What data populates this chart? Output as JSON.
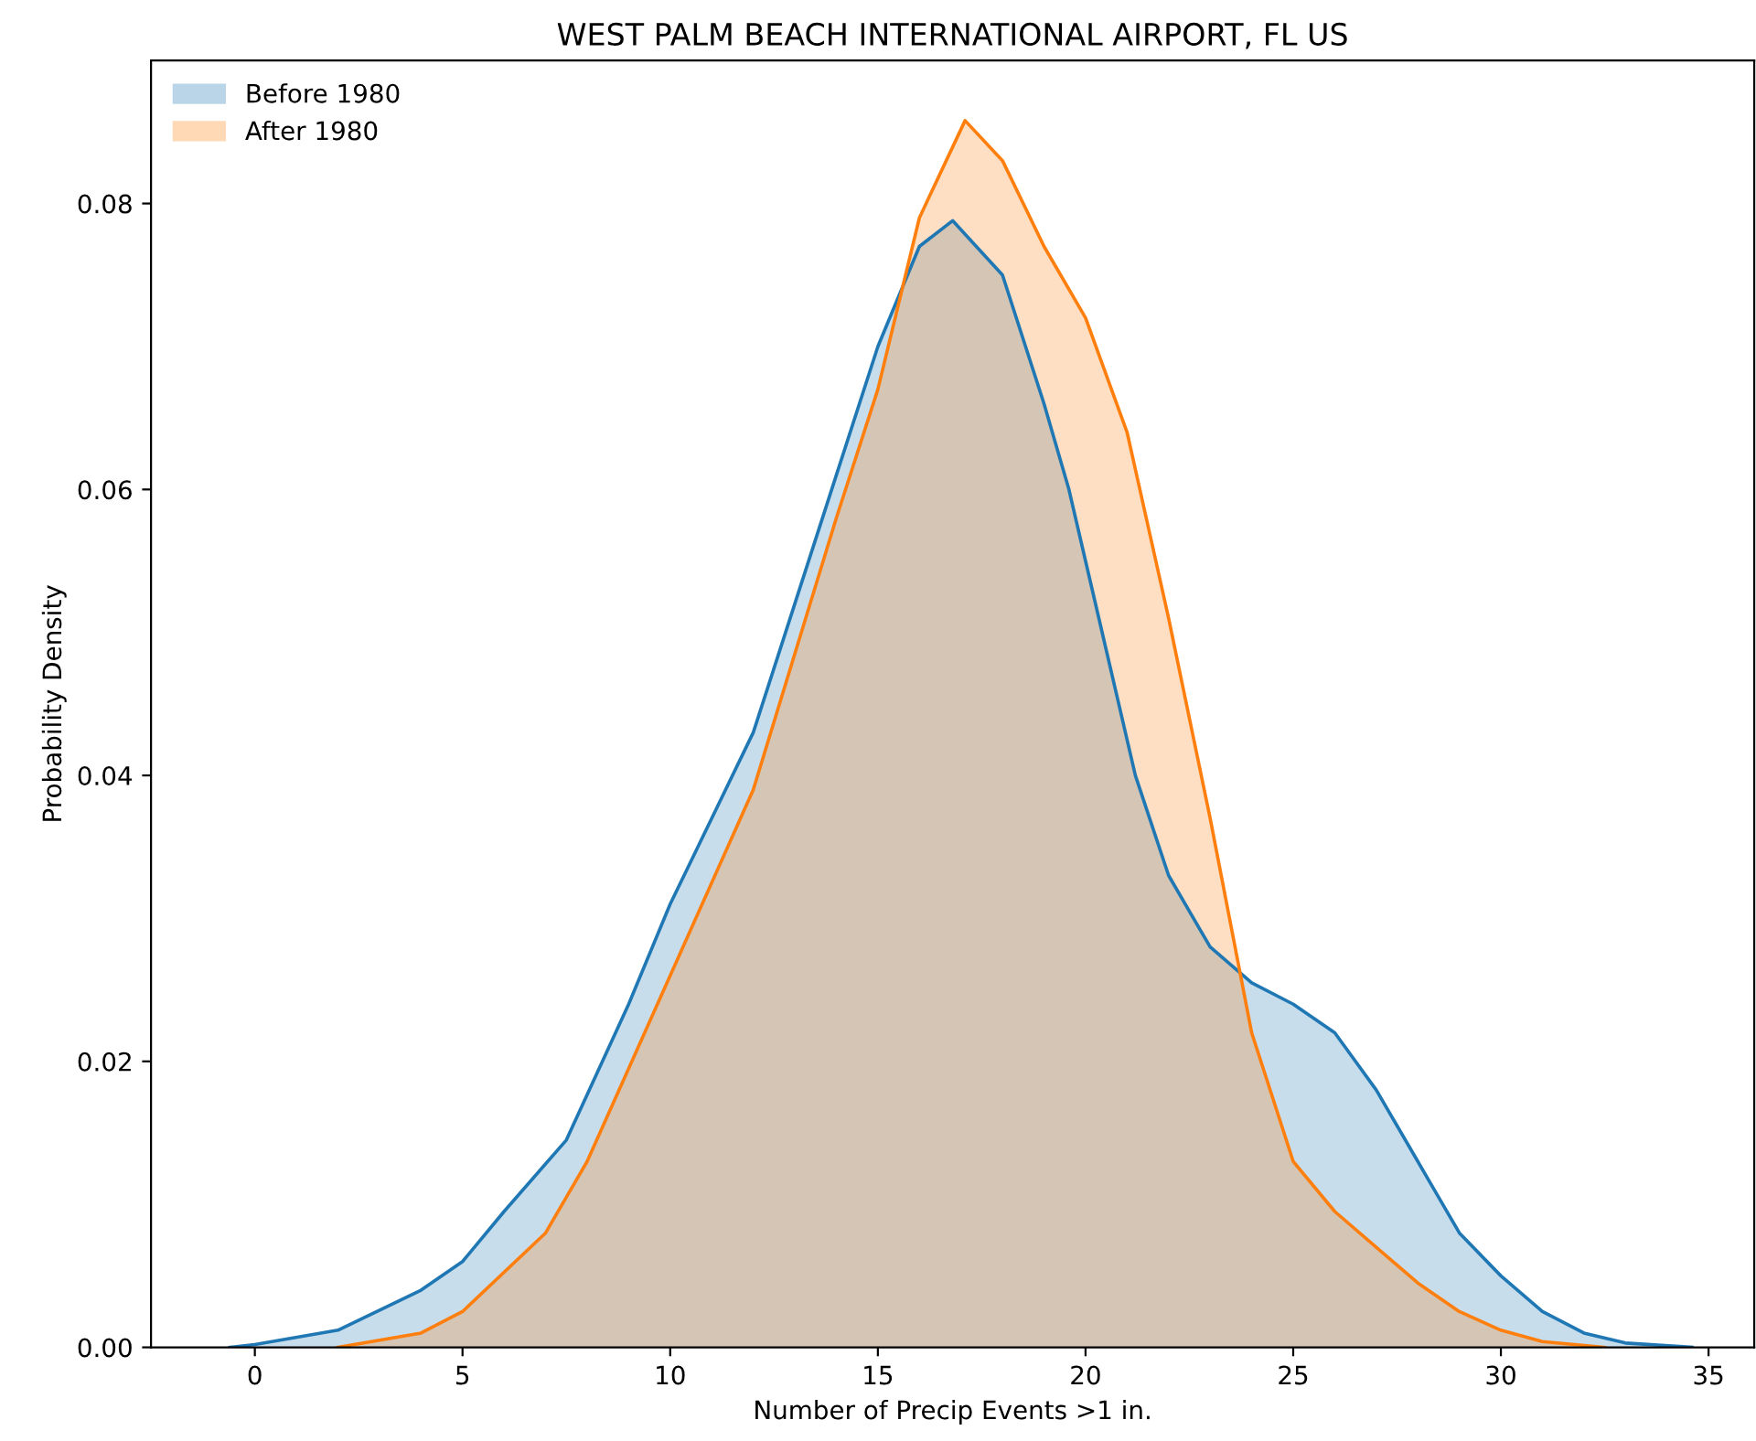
{
  "chart_data": {
    "type": "area",
    "title": "WEST PALM BEACH INTERNATIONAL AIRPORT, FL US",
    "xlabel": "Number of Precip Events >1 in.",
    "ylabel": "Probability Density",
    "xlim": [
      -2.5,
      36.1
    ],
    "ylim": [
      0,
      0.09
    ],
    "xticks": [
      0,
      5,
      10,
      15,
      20,
      25,
      30,
      35
    ],
    "yticks": [
      {
        "value": 0,
        "label": "0.00"
      },
      {
        "value": 0.02,
        "label": "0.02"
      },
      {
        "value": 0.04,
        "label": "0.04"
      },
      {
        "value": 0.06,
        "label": "0.06"
      },
      {
        "value": 0.08,
        "label": "0.08"
      }
    ],
    "grid": false,
    "legend": "top left",
    "marker": "none",
    "line_style": "solid",
    "series": [
      {
        "name": "Before 1980",
        "color": "#1f77b4",
        "x": [
          -0.6,
          0,
          2,
          4,
          5,
          6,
          7.5,
          9,
          10,
          11,
          12,
          13,
          14,
          15,
          16,
          16.8,
          18,
          19,
          19.6,
          20,
          21.2,
          22,
          23,
          24,
          25,
          26,
          27,
          28,
          29,
          30,
          31,
          32,
          33,
          34.6
        ],
        "values": [
          0,
          0.0002,
          0.0012,
          0.004,
          0.006,
          0.0095,
          0.0145,
          0.024,
          0.031,
          0.037,
          0.043,
          0.052,
          0.061,
          0.07,
          0.077,
          0.0788,
          0.075,
          0.066,
          0.06,
          0.055,
          0.04,
          0.033,
          0.028,
          0.0255,
          0.024,
          0.022,
          0.018,
          0.013,
          0.008,
          0.005,
          0.0025,
          0.001,
          0.0003,
          0
        ]
      },
      {
        "name": "After 1980",
        "color": "#ff7f0e",
        "x": [
          2,
          4,
          5,
          7,
          8,
          10,
          12,
          14,
          15,
          16,
          17.1,
          18,
          19,
          20,
          21,
          22,
          23,
          24,
          25,
          26,
          27,
          28,
          29,
          30,
          31,
          32.5
        ],
        "values": [
          0,
          0.001,
          0.0025,
          0.008,
          0.013,
          0.026,
          0.039,
          0.058,
          0.067,
          0.079,
          0.0858,
          0.083,
          0.077,
          0.072,
          0.064,
          0.051,
          0.037,
          0.022,
          0.013,
          0.0095,
          0.007,
          0.0045,
          0.0025,
          0.0012,
          0.0004,
          0
        ]
      }
    ]
  }
}
